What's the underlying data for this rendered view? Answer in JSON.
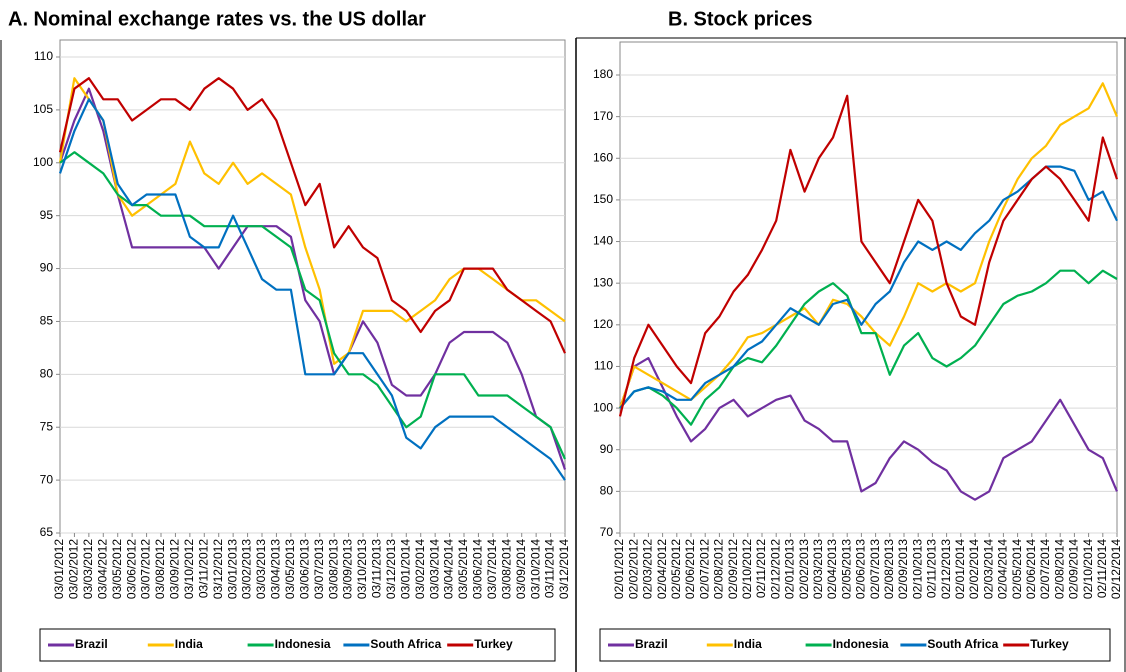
{
  "chart_data": [
    {
      "type": "line",
      "title": "A. Nominal exchange rates vs. the US dollar",
      "categories": [
        "03/01/2012",
        "03/02/2012",
        "03/03/2012",
        "03/04/2012",
        "03/05/2012",
        "03/06/2012",
        "03/07/2012",
        "03/08/2012",
        "03/09/2012",
        "03/10/2012",
        "03/11/2012",
        "03/12/2012",
        "03/01/2013",
        "03/02/2013",
        "03/03/2013",
        "03/04/2013",
        "03/05/2013",
        "03/06/2013",
        "03/07/2013",
        "03/08/2013",
        "03/09/2013",
        "03/10/2013",
        "03/11/2013",
        "03/12/2013",
        "03/01/2014",
        "03/02/2014",
        "03/03/2014",
        "03/04/2014",
        "03/05/2014",
        "03/06/2014",
        "03/07/2014",
        "03/08/2014",
        "03/09/2014",
        "03/10/2014",
        "03/11/2014",
        "03/12/2014"
      ],
      "series": [
        {
          "name": "Brazil",
          "color": "#7030a0",
          "values": [
            100,
            104,
            107,
            103,
            97,
            92,
            92,
            92,
            92,
            92,
            92,
            90,
            92,
            94,
            94,
            94,
            93,
            87,
            85,
            80,
            82,
            85,
            83,
            79,
            78,
            78,
            80,
            83,
            84,
            84,
            84,
            83,
            80,
            76,
            75,
            71
          ]
        },
        {
          "name": "India",
          "color": "#ffc000",
          "values": [
            100,
            108,
            106,
            104,
            97,
            95,
            96,
            97,
            98,
            102,
            99,
            98,
            100,
            98,
            99,
            98,
            97,
            92,
            88,
            81,
            82,
            86,
            86,
            86,
            85,
            86,
            87,
            89,
            90,
            90,
            89,
            88,
            87,
            87,
            86,
            85
          ]
        },
        {
          "name": "Indonesia",
          "color": "#00b050",
          "values": [
            100,
            101,
            100,
            99,
            97,
            96,
            96,
            95,
            95,
            95,
            94,
            94,
            94,
            94,
            94,
            93,
            92,
            88,
            87,
            82,
            80,
            80,
            79,
            77,
            75,
            76,
            80,
            80,
            80,
            78,
            78,
            78,
            77,
            76,
            75,
            72
          ]
        },
        {
          "name": "South Africa",
          "color": "#0070c0",
          "values": [
            99,
            103,
            106,
            104,
            98,
            96,
            97,
            97,
            97,
            93,
            92,
            92,
            95,
            92,
            89,
            88,
            88,
            80,
            80,
            80,
            82,
            82,
            80,
            78,
            74,
            73,
            75,
            76,
            76,
            76,
            76,
            75,
            74,
            73,
            72,
            70
          ]
        },
        {
          "name": "Turkey",
          "color": "#c00000",
          "values": [
            101,
            107,
            108,
            106,
            106,
            104,
            105,
            106,
            106,
            105,
            107,
            108,
            107,
            105,
            106,
            104,
            100,
            96,
            98,
            92,
            94,
            92,
            91,
            87,
            86,
            84,
            86,
            87,
            90,
            90,
            90,
            88,
            87,
            86,
            85,
            82
          ]
        }
      ],
      "ylim": [
        65,
        110
      ],
      "yticks": [
        65,
        70,
        75,
        80,
        85,
        90,
        95,
        100,
        105,
        110
      ],
      "grid": true
    },
    {
      "type": "line",
      "title": "B. Stock prices",
      "categories": [
        "02/01/2012",
        "02/02/2012",
        "02/03/2012",
        "02/04/2012",
        "02/05/2012",
        "02/06/2012",
        "02/07/2012",
        "02/08/2012",
        "02/09/2012",
        "02/10/2012",
        "02/11/2012",
        "02/12/2012",
        "02/01/2013",
        "02/02/2013",
        "02/03/2013",
        "02/04/2013",
        "02/05/2013",
        "02/06/2013",
        "02/07/2013",
        "02/08/2013",
        "02/09/2013",
        "02/10/2013",
        "02/11/2013",
        "02/12/2013",
        "02/01/2014",
        "02/02/2014",
        "02/03/2014",
        "02/04/2014",
        "02/05/2014",
        "02/06/2014",
        "02/07/2014",
        "02/08/2014",
        "02/09/2014",
        "02/10/2014",
        "02/11/2014",
        "02/12/2014"
      ],
      "series": [
        {
          "name": "Brazil",
          "color": "#7030a0",
          "values": [
            100,
            110,
            112,
            105,
            98,
            92,
            95,
            100,
            102,
            98,
            100,
            102,
            103,
            97,
            95,
            92,
            92,
            80,
            82,
            88,
            92,
            90,
            87,
            85,
            80,
            78,
            80,
            88,
            90,
            92,
            97,
            102,
            96,
            90,
            88,
            80
          ]
        },
        {
          "name": "India",
          "color": "#ffc000",
          "values": [
            100,
            110,
            108,
            106,
            104,
            102,
            105,
            108,
            112,
            117,
            118,
            120,
            122,
            124,
            120,
            126,
            125,
            122,
            118,
            115,
            122,
            130,
            128,
            130,
            128,
            130,
            140,
            148,
            155,
            160,
            163,
            168,
            170,
            172,
            178,
            170
          ]
        },
        {
          "name": "Indonesia",
          "color": "#00b050",
          "values": [
            100,
            104,
            105,
            103,
            100,
            96,
            102,
            105,
            110,
            112,
            111,
            115,
            120,
            125,
            128,
            130,
            127,
            118,
            118,
            108,
            115,
            118,
            112,
            110,
            112,
            115,
            120,
            125,
            127,
            128,
            130,
            133,
            133,
            130,
            133,
            131
          ]
        },
        {
          "name": "South Africa",
          "color": "#0070c0",
          "values": [
            100,
            104,
            105,
            104,
            102,
            102,
            106,
            108,
            110,
            114,
            116,
            120,
            124,
            122,
            120,
            125,
            126,
            120,
            125,
            128,
            135,
            140,
            138,
            140,
            138,
            142,
            145,
            150,
            152,
            155,
            158,
            158,
            157,
            150,
            152,
            145
          ]
        },
        {
          "name": "Turkey",
          "color": "#c00000",
          "values": [
            98,
            112,
            120,
            115,
            110,
            106,
            118,
            122,
            128,
            132,
            138,
            145,
            162,
            152,
            160,
            165,
            175,
            140,
            135,
            130,
            140,
            150,
            145,
            130,
            122,
            120,
            135,
            145,
            150,
            155,
            158,
            155,
            150,
            145,
            165,
            155
          ]
        }
      ],
      "ylim": [
        70,
        180
      ],
      "yticks": [
        70,
        80,
        90,
        100,
        110,
        120,
        130,
        140,
        150,
        160,
        170,
        180
      ],
      "grid": true
    }
  ]
}
